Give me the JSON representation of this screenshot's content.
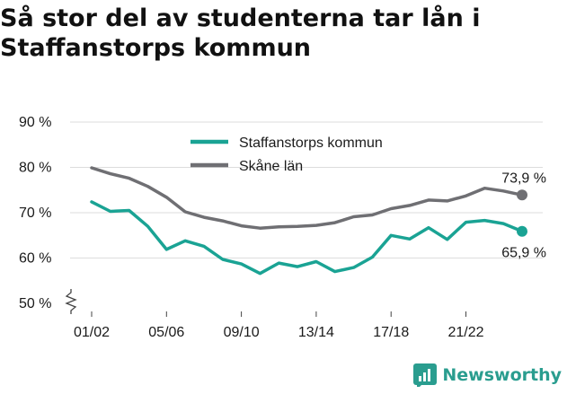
{
  "title": "Så stor del av studenterna tar lån i Staffanstorps kommun",
  "brand": {
    "name": "Newsworthy",
    "logo_icon": "newsworthy-logo-icon"
  },
  "colors": {
    "primary": "#1aa394",
    "secondary": "#6f6f73",
    "grid": "#dddddd",
    "text": "#1a1a1a"
  },
  "chart_data": {
    "type": "line",
    "title": "Så stor del av studenterna tar lån i Staffanstorps kommun",
    "xlabel": "",
    "ylabel": "",
    "categories": [
      "01/02",
      "02/03",
      "03/04",
      "04/05",
      "05/06",
      "06/07",
      "07/08",
      "08/09",
      "09/10",
      "10/11",
      "11/12",
      "12/13",
      "13/14",
      "14/15",
      "15/16",
      "16/17",
      "17/18",
      "18/19",
      "19/20",
      "20/21",
      "21/22",
      "22/23",
      "23/24",
      "24/25"
    ],
    "x_tick_labels": [
      "01/02",
      "05/06",
      "09/10",
      "13/14",
      "17/18",
      "21/22"
    ],
    "y_ticks": [
      50,
      60,
      70,
      80,
      90
    ],
    "y_tick_suffix": " %",
    "ylim": [
      50,
      90
    ],
    "y_axis_break": true,
    "grid": true,
    "legend_position": "top-center",
    "series": [
      {
        "name": "Staffanstorps kommun",
        "color": "#1aa394",
        "end_label": "65,9 %",
        "values": [
          72.4,
          70.3,
          70.5,
          67.0,
          61.9,
          63.8,
          62.6,
          59.7,
          58.7,
          56.6,
          58.9,
          58.1,
          59.2,
          57.0,
          57.9,
          60.2,
          65.0,
          64.2,
          66.7,
          64.1,
          67.9,
          68.3,
          67.6,
          65.9
        ]
      },
      {
        "name": "Skåne län",
        "color": "#6f6f73",
        "end_label": "73,9 %",
        "values": [
          79.9,
          78.6,
          77.6,
          75.8,
          73.4,
          70.2,
          69.0,
          68.2,
          67.1,
          66.6,
          66.9,
          67.0,
          67.2,
          67.8,
          69.1,
          69.5,
          70.9,
          71.6,
          72.8,
          72.6,
          73.7,
          75.4,
          74.8,
          73.9
        ]
      }
    ]
  }
}
